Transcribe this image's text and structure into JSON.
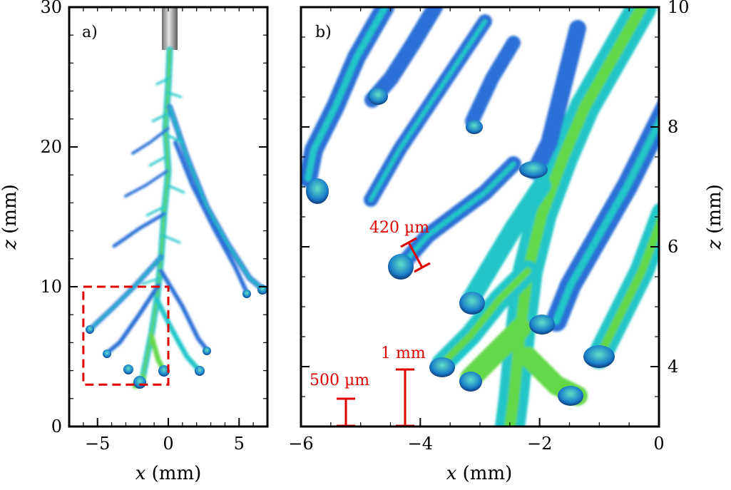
{
  "figure": {
    "panel_a": {
      "label": "a)",
      "xlabel_var": "x",
      "xlabel_unit": " (mm)",
      "ylabel_var": "z",
      "ylabel_unit": " (mm)",
      "xlim": [
        -7,
        7
      ],
      "ylim": [
        0,
        30
      ],
      "xticks": [
        {
          "value": -5,
          "label": "−5"
        },
        {
          "value": 0,
          "label": "0"
        },
        {
          "value": 5,
          "label": "5"
        }
      ],
      "yticks": [
        {
          "value": 0,
          "label": "0"
        },
        {
          "value": 10,
          "label": "10"
        },
        {
          "value": 20,
          "label": "20"
        },
        {
          "value": 30,
          "label": "30"
        }
      ],
      "zoom_box": {
        "x0": -6,
        "x1": 0,
        "z0": 3,
        "z1": 10,
        "color": "#e00000"
      }
    },
    "panel_b": {
      "label": "b)",
      "xlabel_var": "x",
      "xlabel_unit": " (mm)",
      "ylabel_var": "z",
      "ylabel_unit": " (mm)",
      "xlim": [
        -6,
        0
      ],
      "ylim": [
        3,
        10
      ],
      "xticks": [
        {
          "value": -6,
          "label": "−6"
        },
        {
          "value": -4,
          "label": "−4"
        },
        {
          "value": -2,
          "label": "−2"
        },
        {
          "value": 0,
          "label": "0"
        }
      ],
      "yticks": [
        {
          "value": 4,
          "label": "4"
        },
        {
          "value": 6,
          "label": "6"
        },
        {
          "value": 8,
          "label": "8"
        },
        {
          "value": 10,
          "label": "10"
        }
      ],
      "scale_bars": [
        {
          "label": "420 µm"
        },
        {
          "label": "500 µm"
        },
        {
          "label": "1 mm"
        }
      ],
      "scale_color": "#e00000"
    },
    "colors": {
      "branch_blue": "#2a6fd6",
      "branch_cyan": "#22c6c8",
      "branch_green": "#63d84a",
      "tip_dark": "#0e3a78",
      "needle": "#9a9a9a"
    }
  }
}
